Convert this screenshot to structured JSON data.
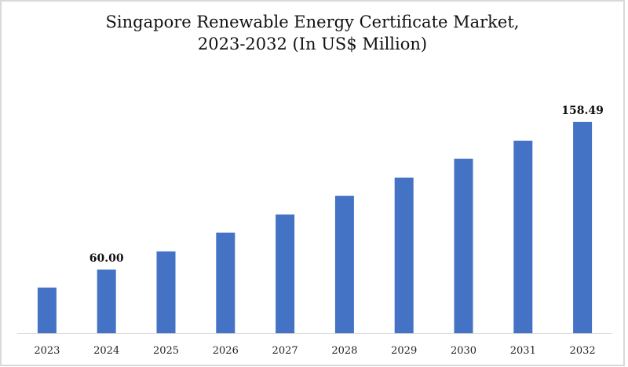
{
  "chart_data": {
    "type": "bar",
    "title_line1": "Singapore Renewable Energy Certificate Market,",
    "title_line2": "2023-2032 (In US$ Million)",
    "xlabel": "",
    "ylabel": "",
    "categories": [
      "2023",
      "2024",
      "2025",
      "2026",
      "2027",
      "2028",
      "2029",
      "2030",
      "2031",
      "2032"
    ],
    "values": [
      48.0,
      60.0,
      72.1,
      84.6,
      96.7,
      109.2,
      121.3,
      133.9,
      145.9,
      158.49
    ],
    "data_labels": [
      {
        "index": 1,
        "text": "60.00"
      },
      {
        "index": 9,
        "text": "158.49"
      }
    ],
    "axis_min": 17.57,
    "axis_max": 170,
    "grid": false,
    "legend": "none",
    "bar_color": "#4472c4"
  }
}
